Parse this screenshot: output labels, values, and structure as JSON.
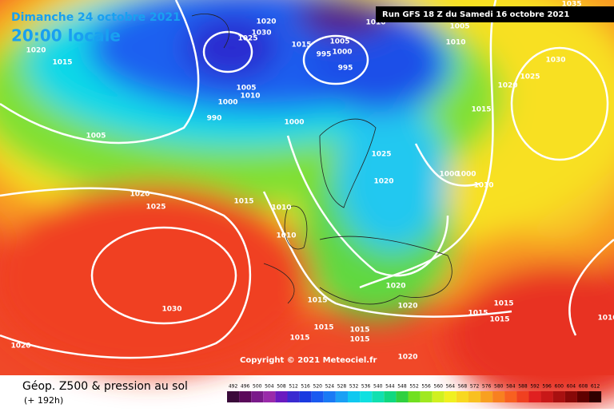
{
  "header": {
    "date": "Dimanche 24 octobre 2021",
    "time": "20:00 locale",
    "run": "Run GFS 18 Z du Samedi 16 octobre 2021",
    "copyright": "Copyright © 2021 Meteociel.fr"
  },
  "footer": {
    "title": "Géop. Z500 & pression au sol",
    "lead": "(+ 192h)"
  },
  "isobar_labels": [
    1020,
    1015,
    1005,
    1020,
    1025,
    1030,
    1020,
    1020,
    1030,
    1025,
    1015,
    1005,
    1000,
    995,
    995,
    1005,
    1010,
    1000,
    990,
    1000,
    1010,
    1005,
    1010,
    1035,
    1030,
    1025,
    1020,
    1015,
    1025,
    1020,
    1000,
    1000,
    1010,
    1015,
    1010,
    1010,
    1015,
    1020,
    1020,
    1015,
    1015,
    1015,
    1015,
    1015,
    1015,
    1015,
    1020,
    1010
  ],
  "legend": {
    "labels": [
      492,
      496,
      500,
      504,
      508,
      512,
      516,
      520,
      524,
      528,
      532,
      536,
      540,
      544,
      548,
      552,
      556,
      560,
      564,
      568,
      572,
      576,
      580,
      584,
      588,
      592,
      596,
      600,
      604,
      608,
      612
    ],
    "colors": [
      "#3a0a3a",
      "#5a0a5a",
      "#7a1a8a",
      "#9a2aaa",
      "#6a1ac0",
      "#3a2ad0",
      "#1a3ae0",
      "#1a5af0",
      "#1a7af5",
      "#1aa0f5",
      "#10c8f0",
      "#10e0e0",
      "#10e0b0",
      "#10d880",
      "#30d040",
      "#70e020",
      "#a0e820",
      "#d0f020",
      "#f0f020",
      "#f8d820",
      "#f8c020",
      "#f8a020",
      "#f88020",
      "#f86020",
      "#f04020",
      "#e02020",
      "#c81818",
      "#a81010",
      "#880808",
      "#600000",
      "#300000"
    ]
  }
}
